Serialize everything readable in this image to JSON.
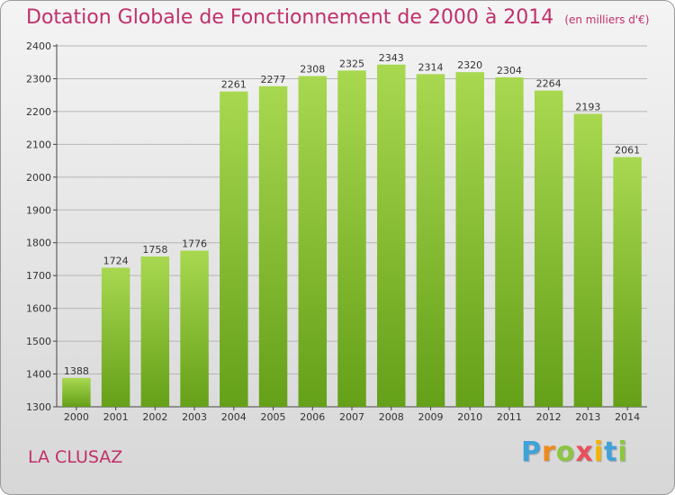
{
  "title": "Dotation Globale de Fonctionnement de 2000 à 2014",
  "unit": "(en milliers d'€)",
  "commune": "LA CLUSAZ",
  "logo": {
    "letters": [
      "P",
      "r",
      "o",
      "x",
      "i",
      "t",
      "i"
    ],
    "colors": [
      "#3fa2d8",
      "#f08a1c",
      "#8cc63f",
      "#e8505b",
      "#f5b400",
      "#3fa2d8",
      "#8cc63f"
    ]
  },
  "colors": {
    "bar_light": "#a8d850",
    "bar_dark": "#64a018",
    "title": "#c0306a"
  },
  "chart_data": {
    "type": "bar",
    "title": "Dotation Globale de Fonctionnement de 2000 à 2014",
    "xlabel": "",
    "ylabel": "",
    "categories": [
      "2000",
      "2001",
      "2002",
      "2003",
      "2004",
      "2005",
      "2006",
      "2007",
      "2008",
      "2009",
      "2010",
      "2011",
      "2012",
      "2013",
      "2014"
    ],
    "values": [
      1388,
      1724,
      1758,
      1776,
      2261,
      2277,
      2308,
      2325,
      2343,
      2314,
      2320,
      2304,
      2264,
      2193,
      2061
    ],
    "ylim": [
      1300,
      2400
    ],
    "yticks": [
      1300,
      1400,
      1500,
      1600,
      1700,
      1800,
      1900,
      2000,
      2100,
      2200,
      2300,
      2400
    ],
    "grid": true,
    "data_labels": true
  }
}
